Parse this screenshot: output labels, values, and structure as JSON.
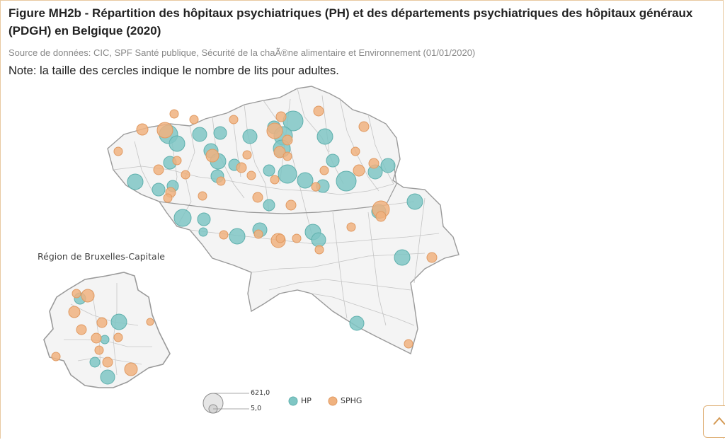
{
  "figure": {
    "title": "Figure MH2b - Répartition des hôpitaux psychiatriques (PH) et des départements psychiatriques des hôpitaux généraux (PDGH) en Belgique (2020)",
    "source": "Source de données: CIC, SPF Santé publique, Sécurité de la chaÃ®ne alimentaire et Environnement (01/01/2020)",
    "note": "Note: la taille des cercles indique le nombre de lits pour adultes."
  },
  "map": {
    "inset_label": "Région de Bruxelles-Capitale",
    "colors": {
      "hp": "#7fc6c4",
      "sphg": "#f0b27f",
      "border": "#b8b8b8",
      "outline": "#9a9a9a",
      "fill": "#f4f4f4"
    },
    "legend": {
      "size_max": "621,0",
      "size_min": "5,0",
      "hp": "HP",
      "sphg": "SPHG"
    }
  },
  "ui": {
    "scroll_top_icon": "chevron-up-icon"
  }
}
